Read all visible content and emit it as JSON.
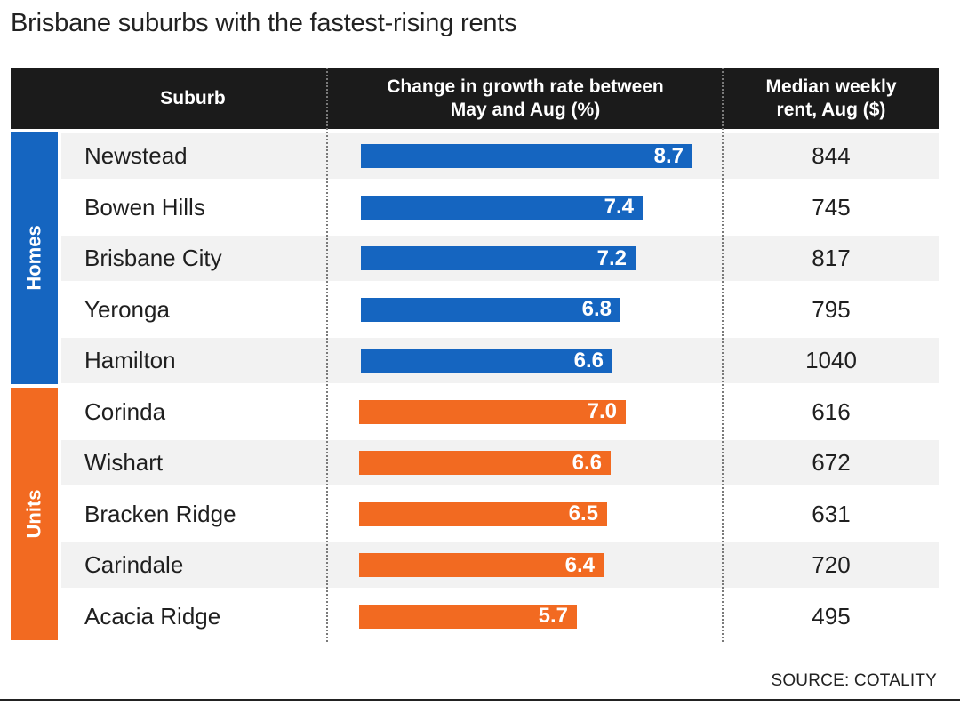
{
  "title": "Brisbane suburbs with the fastest-rising rents",
  "header": {
    "suburb": "Suburb",
    "growth_line1": "Change in growth rate between",
    "growth_line2": "May and Aug (%)",
    "rent_line1": "Median weekly",
    "rent_line2": "rent, Aug ($)"
  },
  "groups": [
    {
      "label": "Homes",
      "color": "#1565c0"
    },
    {
      "label": "Units",
      "color": "#f26a21"
    }
  ],
  "chart_data": {
    "type": "table",
    "columns": [
      "Suburb",
      "Change in growth rate between May and Aug (%)",
      "Median weekly rent, Aug ($)"
    ],
    "series": [
      {
        "name": "Homes",
        "rows": [
          {
            "suburb": "Newstead",
            "growth": "8.7",
            "rent": "844"
          },
          {
            "suburb": "Bowen Hills",
            "growth": "7.4",
            "rent": "745"
          },
          {
            "suburb": "Brisbane City",
            "growth": "7.2",
            "rent": "817"
          },
          {
            "suburb": "Yeronga",
            "growth": "6.8",
            "rent": "795"
          },
          {
            "suburb": "Hamilton",
            "growth": "6.6",
            "rent": "1040"
          }
        ]
      },
      {
        "name": "Units",
        "rows": [
          {
            "suburb": "Corinda",
            "growth": "7.0",
            "rent": "616"
          },
          {
            "suburb": "Wishart",
            "growth": "6.6",
            "rent": "672"
          },
          {
            "suburb": "Bracken Ridge",
            "growth": "6.5",
            "rent": "631"
          },
          {
            "suburb": "Carindale",
            "growth": "6.4",
            "rent": "720"
          },
          {
            "suburb": "Acacia Ridge",
            "growth": "5.7",
            "rent": "495"
          }
        ]
      }
    ],
    "grid": false
  },
  "source": "SOURCE: COTALITY"
}
